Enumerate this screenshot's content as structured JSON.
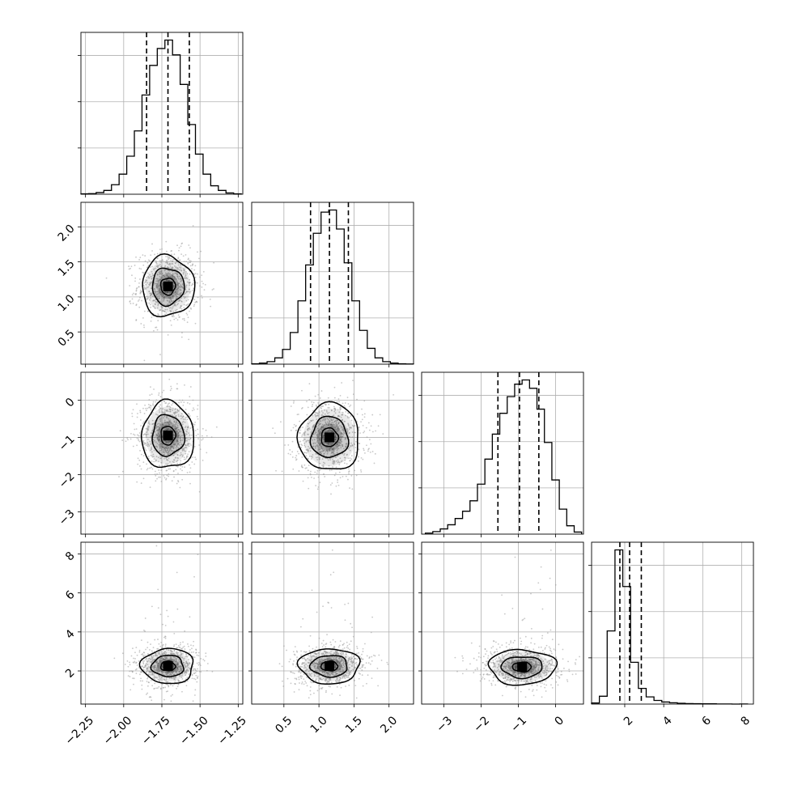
{
  "figure": {
    "type": "corner-plot",
    "panel_grid": "4x4 lower triangle",
    "grid": true
  },
  "chart_data": {
    "type": "corner",
    "grid": true,
    "parameters": [
      {
        "index": 0,
        "xlim": [
          -2.28,
          -1.22
        ],
        "ticks": [
          -2.25,
          -2.0,
          -1.75,
          -1.5,
          -1.25
        ],
        "tick_labels": [
          "−2.25",
          "−2.00",
          "−1.75",
          "−1.50",
          "−1.25"
        ],
        "quantiles": [
          -1.85,
          -1.71,
          -1.57
        ]
      },
      {
        "index": 1,
        "xlim": [
          0.04,
          2.35
        ],
        "ticks": [
          0.5,
          1.0,
          1.5,
          2.0
        ],
        "tick_labels": [
          "0.5",
          "1.0",
          "1.5",
          "2.0"
        ],
        "quantiles": [
          0.88,
          1.15,
          1.42
        ]
      },
      {
        "index": 2,
        "xlim": [
          -3.6,
          0.75
        ],
        "ticks": [
          -3,
          -2,
          -1,
          0
        ],
        "tick_labels": [
          "−3",
          "−2",
          "−1",
          "0"
        ],
        "quantiles": [
          -1.55,
          -0.97,
          -0.45
        ]
      },
      {
        "index": 3,
        "xlim": [
          0.3,
          8.6
        ],
        "ticks": [
          2,
          4,
          6,
          8
        ],
        "tick_labels": [
          "2",
          "4",
          "6",
          "8"
        ],
        "quantiles": [
          1.75,
          2.25,
          2.85
        ]
      }
    ],
    "histograms": [
      {
        "param": 0,
        "bin_edges": [
          -2.28,
          -2.23,
          -2.18,
          -2.13,
          -2.08,
          -2.03,
          -1.98,
          -1.93,
          -1.88,
          -1.83,
          -1.78,
          -1.73,
          -1.68,
          -1.63,
          -1.58,
          -1.53,
          -1.48,
          -1.43,
          -1.38,
          -1.33,
          -1.28,
          -1.23
        ],
        "counts": [
          2,
          3,
          8,
          18,
          45,
          95,
          180,
          300,
          470,
          610,
          690,
          730,
          660,
          520,
          330,
          190,
          95,
          40,
          18,
          6,
          2
        ]
      },
      {
        "param": 1,
        "bin_edges": [
          0.04,
          0.15,
          0.26,
          0.37,
          0.48,
          0.59,
          0.7,
          0.81,
          0.92,
          1.03,
          1.14,
          1.25,
          1.36,
          1.47,
          1.58,
          1.69,
          1.8,
          1.91,
          2.02,
          2.13,
          2.24,
          2.35
        ],
        "counts": [
          2,
          5,
          12,
          30,
          70,
          150,
          300,
          470,
          620,
          720,
          730,
          640,
          480,
          300,
          160,
          75,
          30,
          12,
          5,
          2,
          1
        ]
      },
      {
        "param": 2,
        "bin_edges": [
          -3.5,
          -3.3,
          -3.1,
          -2.9,
          -2.7,
          -2.5,
          -2.3,
          -2.1,
          -1.9,
          -1.7,
          -1.5,
          -1.3,
          -1.1,
          -0.9,
          -0.7,
          -0.5,
          -0.3,
          -0.1,
          0.1,
          0.3,
          0.5,
          0.7
        ],
        "counts": [
          5,
          12,
          25,
          45,
          75,
          110,
          160,
          240,
          360,
          480,
          580,
          660,
          720,
          740,
          700,
          600,
          440,
          260,
          120,
          40,
          10
        ]
      },
      {
        "param": 3,
        "bin_edges": [
          0.3,
          0.7,
          1.1,
          1.5,
          1.9,
          2.3,
          2.7,
          3.1,
          3.5,
          3.9,
          4.3,
          4.7,
          5.1,
          5.5,
          5.9,
          6.3,
          6.7,
          7.1,
          7.5,
          7.9,
          8.3
        ],
        "counts": [
          8,
          60,
          560,
          1180,
          900,
          320,
          120,
          55,
          28,
          16,
          10,
          6,
          4,
          3,
          2,
          2,
          1,
          1,
          0,
          1
        ]
      }
    ],
    "pairs": [
      {
        "x": 0,
        "y": 1,
        "center": [
          -1.71,
          1.15
        ],
        "sigma": [
          0.095,
          0.24
        ],
        "levels": [
          0.5,
          1.1,
          1.8
        ]
      },
      {
        "x": 0,
        "y": 2,
        "center": [
          -1.71,
          -0.95
        ],
        "sigma": [
          0.095,
          0.5
        ],
        "levels": [
          0.5,
          1.1,
          1.8
        ]
      },
      {
        "x": 1,
        "y": 2,
        "center": [
          1.15,
          -1.0
        ],
        "sigma": [
          0.24,
          0.5
        ],
        "levels": [
          0.5,
          1.1,
          1.8
        ]
      },
      {
        "x": 0,
        "y": 3,
        "center": [
          -1.71,
          2.25
        ],
        "sigma": [
          0.095,
          0.5
        ],
        "levels": [
          0.5,
          1.1,
          1.8
        ]
      },
      {
        "x": 1,
        "y": 3,
        "center": [
          1.15,
          2.25
        ],
        "sigma": [
          0.24,
          0.5
        ],
        "levels": [
          0.5,
          1.1,
          1.8
        ]
      },
      {
        "x": 2,
        "y": 3,
        "center": [
          -0.9,
          2.2
        ],
        "sigma": [
          0.5,
          0.5
        ],
        "levels": [
          0.5,
          1.1,
          1.8
        ]
      }
    ],
    "colors": {
      "line": "#000000",
      "scatter": "#9a9a9a",
      "grid": "#b0b0b0"
    }
  }
}
